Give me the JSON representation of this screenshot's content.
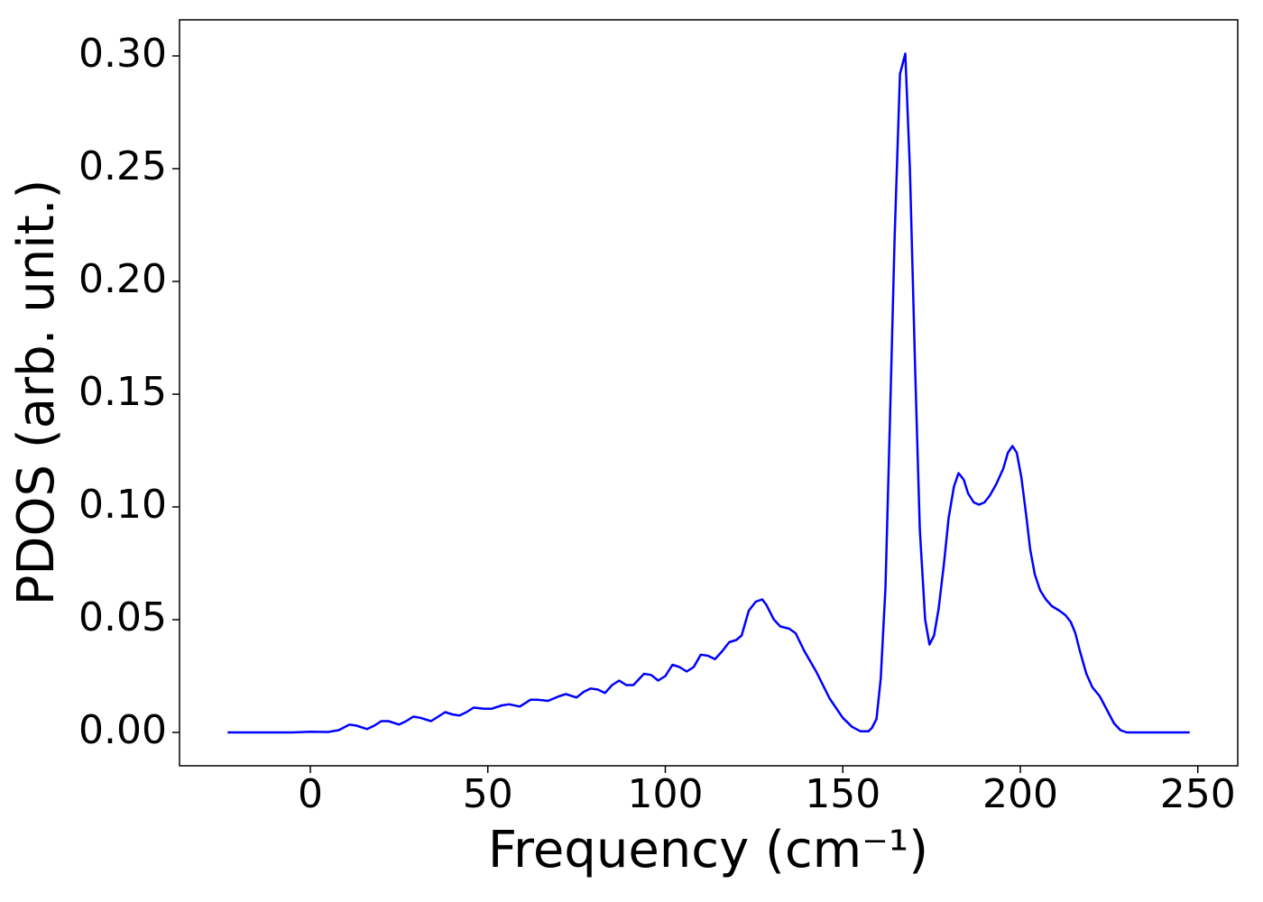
{
  "chart_data": {
    "type": "line",
    "xlabel": "Frequency (cm⁻¹)",
    "ylabel": "PDOS (arb. unit.)",
    "series": [
      {
        "color": "#0000ff",
        "x": [
          -23.3,
          -5,
          0,
          5,
          8,
          11,
          13,
          16,
          18,
          20,
          22,
          25,
          27,
          29,
          31,
          34,
          36,
          38,
          40,
          42,
          44,
          46,
          49,
          51,
          54,
          56,
          59,
          62,
          64,
          67,
          70,
          72,
          75,
          77,
          79,
          81,
          83,
          85,
          87,
          89,
          91,
          94,
          96,
          98,
          100,
          102,
          104,
          106,
          108,
          110,
          112,
          114,
          116,
          118,
          120,
          121.5,
          123.5,
          125.5,
          127.3,
          128.5,
          130.6,
          132.4,
          134.9,
          136.7,
          139.2,
          142.5,
          146.3,
          150,
          152.6,
          155,
          157.2,
          158.2,
          159.5,
          160.7,
          162,
          163.3,
          164.6,
          166.1,
          167.6,
          168.9,
          170.4,
          171.7,
          173.2,
          174.4,
          175.7,
          177,
          178.5,
          179.8,
          181.3,
          182.6,
          184.1,
          185.3,
          186.9,
          188.4,
          189.9,
          191.4,
          193.2,
          195.2,
          196.5,
          197.8,
          199,
          200.3,
          201.6,
          202.8,
          204.1,
          205.6,
          207.2,
          208.9,
          211,
          212.7,
          214.2,
          215.5,
          216.8,
          218.6,
          220.3,
          222.4,
          224.4,
          226.4,
          228.2,
          230,
          247.7
        ],
        "values": [
          0,
          0,
          0.0003,
          0.0002,
          0.001,
          0.0035,
          0.003,
          0.0015,
          0.003,
          0.005,
          0.005,
          0.0035,
          0.005,
          0.007,
          0.0065,
          0.005,
          0.007,
          0.009,
          0.008,
          0.0075,
          0.009,
          0.011,
          0.0105,
          0.0105,
          0.012,
          0.0125,
          0.0115,
          0.0145,
          0.0145,
          0.014,
          0.016,
          0.017,
          0.0155,
          0.018,
          0.0195,
          0.019,
          0.0175,
          0.021,
          0.023,
          0.021,
          0.021,
          0.026,
          0.0255,
          0.023,
          0.025,
          0.03,
          0.029,
          0.027,
          0.029,
          0.0345,
          0.034,
          0.0325,
          0.036,
          0.04,
          0.041,
          0.043,
          0.054,
          0.058,
          0.059,
          0.0565,
          0.05,
          0.047,
          0.046,
          0.044,
          0.036,
          0.027,
          0.015,
          0.0065,
          0.0025,
          0.0005,
          0.0005,
          0.002,
          0.006,
          0.024,
          0.064,
          0.14,
          0.22,
          0.292,
          0.301,
          0.25,
          0.16,
          0.09,
          0.05,
          0.039,
          0.043,
          0.055,
          0.075,
          0.095,
          0.109,
          0.115,
          0.112,
          0.106,
          0.102,
          0.101,
          0.102,
          0.105,
          0.11,
          0.117,
          0.124,
          0.127,
          0.124,
          0.113,
          0.097,
          0.081,
          0.07,
          0.063,
          0.059,
          0.056,
          0.054,
          0.052,
          0.049,
          0.044,
          0.036,
          0.026,
          0.02,
          0.016,
          0.01,
          0.004,
          0.001,
          0,
          0
        ]
      }
    ],
    "xlim": [
      -36.85,
      261.25
    ],
    "xticks": [
      0,
      50,
      100,
      150,
      200,
      250
    ],
    "ylim": [
      -0.0148,
      0.316
    ],
    "yticks": [
      {
        "value": 0,
        "label": "0.00"
      },
      {
        "value": 0.05,
        "label": "0.05"
      },
      {
        "value": 0.1,
        "label": "0.10"
      },
      {
        "value": 0.15,
        "label": "0.15"
      },
      {
        "value": 0.2,
        "label": "0.20"
      },
      {
        "value": 0.25,
        "label": "0.25"
      },
      {
        "value": 0.3,
        "label": "0.30"
      }
    ],
    "grid": false
  }
}
